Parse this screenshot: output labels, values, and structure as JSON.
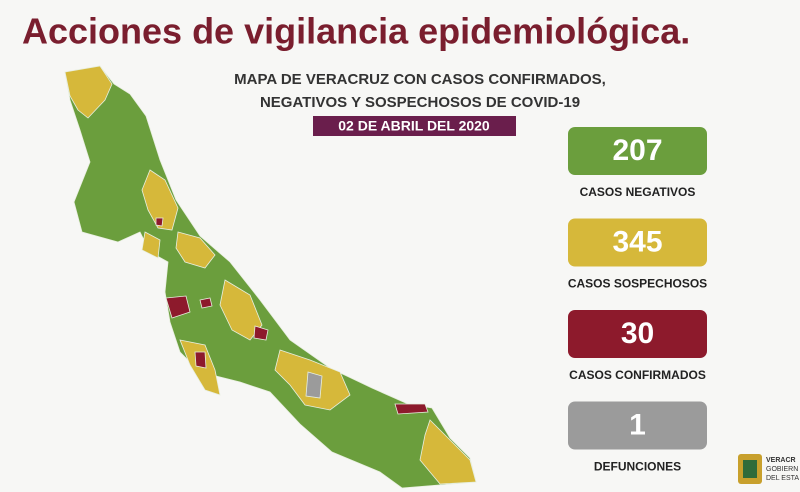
{
  "header": {
    "title": "Acciones de vigilancia epidemiológica.",
    "subtitle_lines": [
      "MAPA DE VERACRUZ CON CASOS CONFIRMADOS,",
      "NEGATIVOS Y SOSPECHOSOS DE COVID-19"
    ],
    "date": "02 DE ABRIL DEL 2020"
  },
  "stats": [
    {
      "value": "207",
      "label": "CASOS NEGATIVOS",
      "color": "#6b9e3d"
    },
    {
      "value": "345",
      "label": "CASOS SOSPECHOSOS",
      "color": "#d6b83a"
    },
    {
      "value": "30",
      "label": "CASOS CONFIRMADOS",
      "color": "#8d1a2c"
    },
    {
      "value": "1",
      "label": "DEFUNCIONES",
      "color": "#9b9b9b"
    }
  ],
  "logo_lines": [
    "VERACR",
    "GOBIERN",
    "DEL ESTA"
  ]
}
